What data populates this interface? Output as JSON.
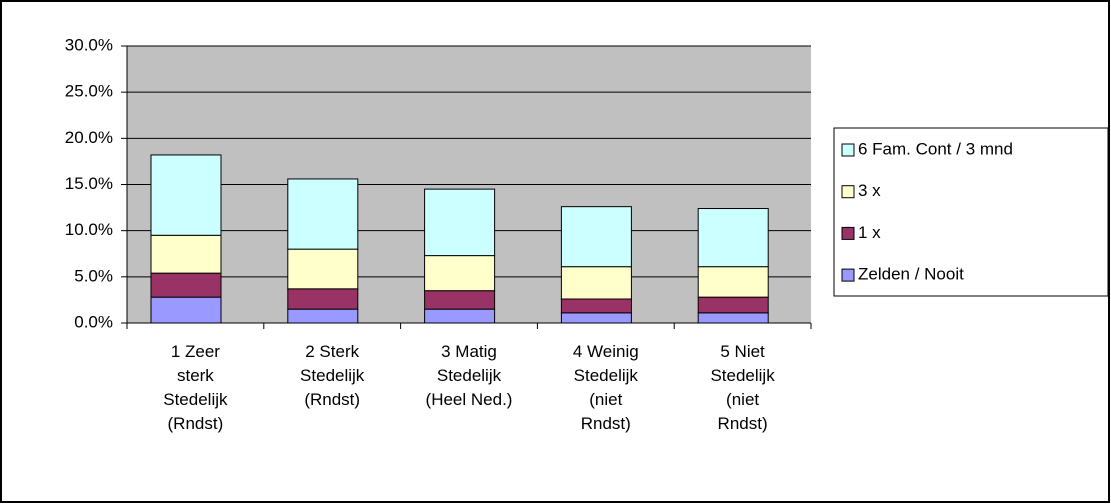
{
  "chart_data": {
    "type": "stacked-bar",
    "categories": [
      "1  Zeer\nsterk\nStedelijk\n(Rndst)",
      "2  Sterk\nStedelijk\n(Rndst)",
      "3  Matig\nStedelijk\n(Heel Ned.)",
      "4  Weinig\nStedelijk\n(niet\nRndst)",
      "5  Niet\nStedelijk\n(niet\nRndst)"
    ],
    "series": [
      {
        "name": "Zelden / Nooit",
        "color": "#9999ff",
        "values": [
          2.8,
          1.5,
          1.5,
          1.1,
          1.1
        ]
      },
      {
        "name": "1 x",
        "color": "#993366",
        "values": [
          2.6,
          2.2,
          2.0,
          1.5,
          1.7
        ]
      },
      {
        "name": "3 x",
        "color": "#ffffcc",
        "values": [
          4.1,
          4.3,
          3.8,
          3.5,
          3.3
        ]
      },
      {
        "name": "6 Fam. Cont / 3 mnd",
        "color": "#ccffff",
        "values": [
          8.7,
          7.6,
          7.2,
          6.5,
          6.3
        ]
      }
    ],
    "ylim": [
      0,
      30
    ],
    "yticks": [
      {
        "value": 0,
        "label": "0.0%"
      },
      {
        "value": 5,
        "label": "5.0%"
      },
      {
        "value": 10,
        "label": "10.0%"
      },
      {
        "value": 15,
        "label": "15.0%"
      },
      {
        "value": 20,
        "label": "20.0%"
      },
      {
        "value": 25,
        "label": "25.0%"
      },
      {
        "value": 30,
        "label": "30.0%"
      }
    ],
    "grid": true,
    "legend": "right"
  }
}
